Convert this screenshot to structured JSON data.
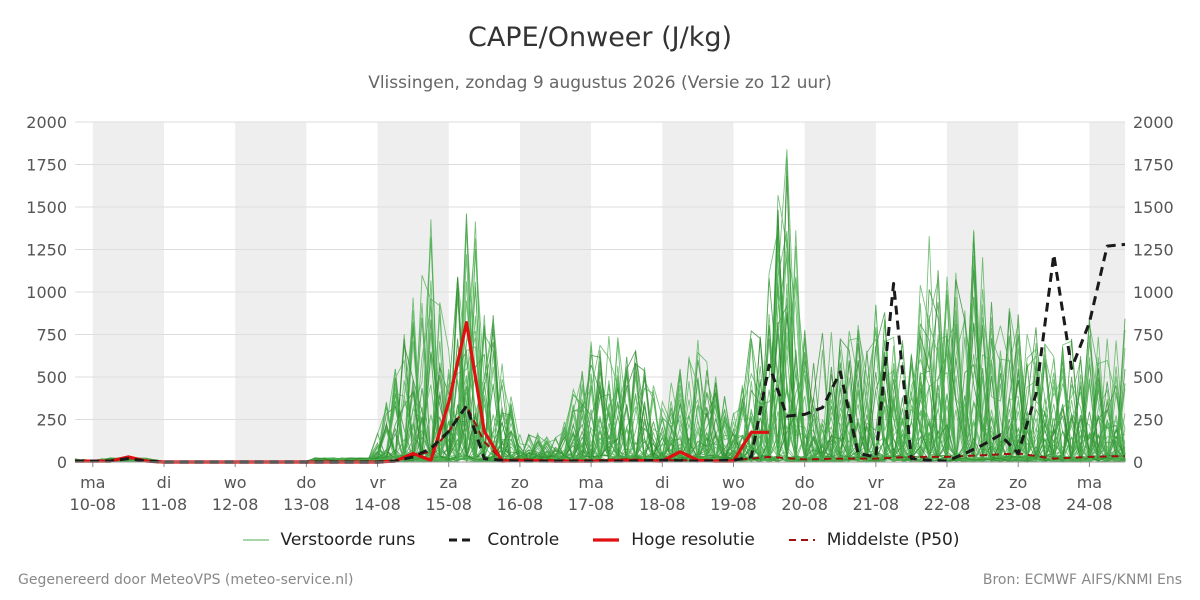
{
  "header": {
    "title": "CAPE/Onweer (J/kg)",
    "subtitle": "Vlissingen, zondag  9 augustus 2026 (Versie zo 12 uur)"
  },
  "footer": {
    "left": "Gegenereerd door MeteoVPS (meteo-service.nl)",
    "right": "Bron: ECMWF AIFS/KNMI Ens"
  },
  "colors": {
    "ensemble": "#4caf50",
    "ensemble_dark": "#2e8b2e",
    "control": "#1a1a1a",
    "high_res": "#e01010",
    "median": "#a01010",
    "weekend_band": "#eeeeee",
    "grid": "#dddddd"
  },
  "chart_data": {
    "type": "line",
    "title": "CAPE/Onweer (J/kg)",
    "ylim": [
      0,
      2000
    ],
    "yticks": [
      0,
      250,
      500,
      750,
      1000,
      1250,
      1500,
      1750,
      2000
    ],
    "grid": true,
    "legend_placement": "bottom-center",
    "x_unit": "day offset from ma 10-08 (x = 0 at 10-08)",
    "xlim": [
      -0.25,
      14.5
    ],
    "x_ticks": [
      {
        "day": "ma",
        "date": "10-08"
      },
      {
        "day": "di",
        "date": "11-08"
      },
      {
        "day": "wo",
        "date": "12-08"
      },
      {
        "day": "do",
        "date": "13-08"
      },
      {
        "day": "vr",
        "date": "14-08"
      },
      {
        "day": "za",
        "date": "15-08"
      },
      {
        "day": "zo",
        "date": "16-08"
      },
      {
        "day": "ma",
        "date": "17-08"
      },
      {
        "day": "di",
        "date": "18-08"
      },
      {
        "day": "wo",
        "date": "19-08"
      },
      {
        "day": "do",
        "date": "20-08"
      },
      {
        "day": "vr",
        "date": "21-08"
      },
      {
        "day": "za",
        "date": "22-08"
      },
      {
        "day": "zo",
        "date": "23-08"
      },
      {
        "day": "ma",
        "date": "24-08"
      }
    ],
    "shaded_days": [
      0,
      2,
      4,
      6,
      8,
      10,
      12,
      14
    ],
    "legend": [
      {
        "key": "ensemble",
        "label": "Verstoorde runs",
        "style": "thin"
      },
      {
        "key": "control",
        "label": "Controle",
        "style": "dashed"
      },
      {
        "key": "high_res",
        "label": "Hoge resolutie",
        "style": "solid"
      },
      {
        "key": "median",
        "label": "Middelste (P50)",
        "style": "dashed-thin"
      }
    ],
    "control": {
      "name": "Controle",
      "x": [
        -0.25,
        0,
        0.25,
        0.5,
        0.75,
        1,
        2,
        3,
        4,
        4.25,
        4.5,
        4.75,
        5,
        5.25,
        5.5,
        5.75,
        6,
        6.5,
        7,
        7.5,
        8,
        8.5,
        9,
        9.25,
        9.5,
        9.75,
        10,
        10.25,
        10.5,
        10.75,
        11,
        11.25,
        11.5,
        11.75,
        12,
        12.25,
        12.5,
        12.75,
        13,
        13.25,
        13.5,
        13.75,
        14,
        14.25,
        14.5
      ],
      "y": [
        5,
        5,
        5,
        20,
        5,
        0,
        0,
        0,
        0,
        5,
        30,
        80,
        180,
        330,
        20,
        10,
        5,
        5,
        5,
        5,
        10,
        5,
        10,
        30,
        570,
        270,
        280,
        320,
        530,
        50,
        30,
        1050,
        20,
        10,
        5,
        50,
        100,
        160,
        50,
        400,
        1220,
        550,
        820,
        1270,
        1280
      ]
    },
    "high_res": {
      "name": "Hoge resolutie",
      "x": [
        -0.25,
        0,
        0.25,
        0.5,
        0.75,
        1,
        2,
        3,
        4,
        4.25,
        4.5,
        4.75,
        5,
        5.25,
        5.5,
        5.75,
        6,
        6.5,
        7,
        7.5,
        8,
        8.25,
        8.5,
        8.75,
        9,
        9.25,
        9.5
      ],
      "y": [
        5,
        5,
        5,
        30,
        5,
        0,
        0,
        0,
        0,
        5,
        50,
        10,
        350,
        820,
        180,
        5,
        10,
        5,
        5,
        10,
        5,
        60,
        10,
        5,
        5,
        175,
        175
      ]
    },
    "median": {
      "name": "Middelste (P50)",
      "x": [
        -0.25,
        0,
        0.25,
        0.5,
        0.75,
        1,
        2,
        3,
        4,
        4.25,
        4.5,
        4.75,
        5,
        5.25,
        5.5,
        5.75,
        6,
        6.5,
        7,
        7.5,
        8,
        8.5,
        9,
        9.5,
        10,
        10.5,
        11,
        11.5,
        12,
        12.5,
        13,
        13.5,
        14,
        14.5
      ],
      "y": [
        5,
        5,
        5,
        25,
        5,
        0,
        0,
        0,
        0,
        5,
        40,
        60,
        180,
        330,
        120,
        10,
        15,
        10,
        10,
        15,
        10,
        10,
        10,
        30,
        15,
        20,
        20,
        30,
        30,
        40,
        50,
        20,
        30,
        35
      ]
    },
    "ensemble_member_count": 50,
    "ensemble_envelope": {
      "x": [
        -0.25,
        0,
        0.5,
        1,
        2,
        3,
        3.75,
        4,
        4.25,
        4.5,
        4.75,
        5,
        5.25,
        5.5,
        5.75,
        6,
        6.5,
        7,
        7.5,
        8,
        8.5,
        9,
        9.5,
        9.75,
        10,
        10.5,
        11,
        11.5,
        11.75,
        12,
        12.25,
        12.5,
        12.75,
        13,
        13.5,
        14,
        14.5
      ],
      "max": [
        20,
        10,
        40,
        5,
        5,
        5,
        160,
        170,
        550,
        1000,
        1450,
        700,
        1630,
        1220,
        580,
        200,
        150,
        740,
        780,
        360,
        790,
        300,
        1250,
        2000,
        780,
        760,
        930,
        750,
        1360,
        1100,
        1500,
        1290,
        930,
        920,
        690,
        860,
        860
      ]
    }
  }
}
